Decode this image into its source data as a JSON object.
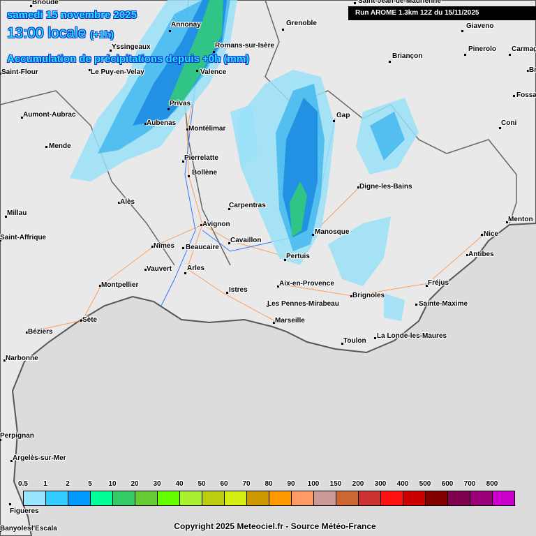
{
  "header": {
    "date": "samedi 15 novembre 2025",
    "time": "13:00 locale",
    "offset": "(+1h)",
    "product": "Accumulation de précipitations depuis +0h (mm)",
    "run": "Run AROME 1.3km 12Z du 15/11/2025"
  },
  "cities": [
    "Saint-Jean-de-Maurienne",
    "Brioude",
    "Annonay",
    "Grenoble",
    "Giaveno",
    "Yssingeaux",
    "Le Puy-en-Velay",
    "Romans-sur-Isère",
    "Saint-Flour",
    "Valence",
    "Pinerolo",
    "Carmagnola",
    "Briançon",
    "Bra",
    "Fossano",
    "Privas",
    "Aumont-Aubrac",
    "Aubenas",
    "Montélimar",
    "Gap",
    "Coni",
    "Mende",
    "Pierrelatte",
    "Bollène",
    "Digne-les-Bains",
    "Alès",
    "Carpentras",
    "Millau",
    "Avignon",
    "Menton",
    "Manosque",
    "Saint-Affrique",
    "Nice",
    "Cavaillon",
    "Nîmes",
    "Beaucaire",
    "Pertuis",
    "Antibes",
    "Vauvert",
    "Arles",
    "Montpellier",
    "Aix-en-Provence",
    "Fréjus",
    "Istres",
    "Brignoles",
    "Les Pennes-Mirabeau",
    "Sainte-Maxime",
    "Sète",
    "Marseille",
    "Béziers",
    "La Londe-les-Maures",
    "Toulon",
    "Narbonne",
    "Perpignan",
    "Argelès-sur-Mer",
    "Figueres",
    "Banyoles",
    "l'Escala"
  ],
  "legend": {
    "unit": "mm",
    "labels": [
      "0.5",
      "1",
      "2",
      "5",
      "10",
      "20",
      "30",
      "40",
      "50",
      "60",
      "70",
      "80",
      "90",
      "100",
      "150",
      "200",
      "300",
      "400",
      "500",
      "600",
      "700",
      "800"
    ],
    "colors": [
      "#99e5ff",
      "#33ccff",
      "#0099ff",
      "#00ff99",
      "#33cc66",
      "#66cc33",
      "#66ff00",
      "#a8f030",
      "#bbcc11",
      "#d4ee11",
      "#cc9900",
      "#ff9900",
      "#ff9966",
      "#cc9999",
      "#cc6633",
      "#cc3333",
      "#ff1111",
      "#cc0000",
      "#800000",
      "#800050",
      "#990077",
      "#cc00cc"
    ]
  },
  "precip_colors": {
    "light": "#99e0f8",
    "medium": "#44b8f0",
    "strong": "#1a88e0",
    "green": "#33cc77"
  },
  "copyright": "Copyright 2025 Meteociel.fr - Source Météo-France"
}
